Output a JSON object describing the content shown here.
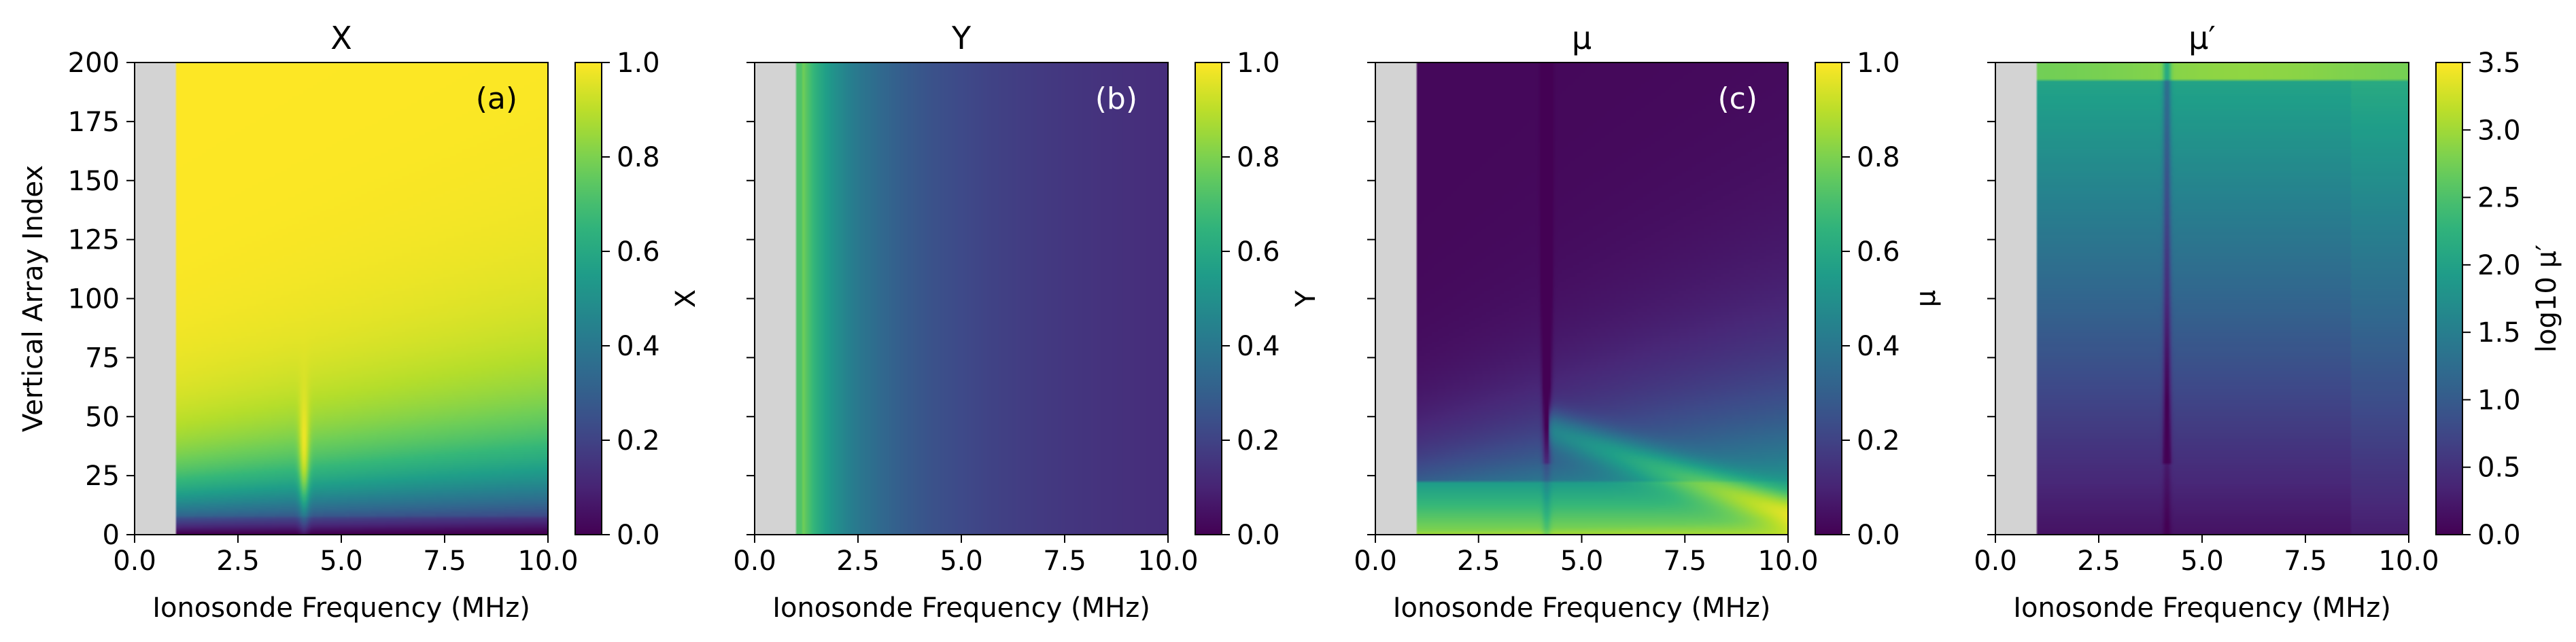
{
  "figure": {
    "xlabel": "Ionosonde Frequency (MHz)",
    "ylabel": "Vertical Array Index"
  },
  "chart_data": [
    {
      "type": "heatmap",
      "title": "X",
      "panel_label": "(a)",
      "label_color": "#000000",
      "xlabel": "Ionosonde Frequency (MHz)",
      "ylabel": "Vertical Array Index",
      "xlim": [
        0,
        10
      ],
      "ylim": [
        0,
        200
      ],
      "xticks": [
        "0.0",
        "2.5",
        "5.0",
        "7.5",
        "10.0"
      ],
      "yticks": [
        "0",
        "25",
        "50",
        "75",
        "100",
        "125",
        "150",
        "175",
        "200"
      ],
      "masked_region_x": [
        0,
        1.0
      ],
      "colormap": "viridis",
      "colorbar": {
        "label": "X",
        "range": [
          0,
          1
        ],
        "ticks": [
          "0.0",
          "0.2",
          "0.4",
          "0.6",
          "0.8",
          "1.0"
        ]
      }
    },
    {
      "type": "heatmap",
      "title": "Y",
      "panel_label": "(b)",
      "label_color": "#ffffff",
      "xlabel": "Ionosonde Frequency (MHz)",
      "xlim": [
        0,
        10
      ],
      "ylim": [
        0,
        200
      ],
      "xticks": [
        "0.0",
        "2.5",
        "5.0",
        "7.5",
        "10.0"
      ],
      "masked_region_x": [
        0,
        1.0
      ],
      "colormap": "viridis",
      "colorbar": {
        "label": "Y",
        "range": [
          0,
          1
        ],
        "ticks": [
          "0.0",
          "0.2",
          "0.4",
          "0.6",
          "0.8",
          "1.0"
        ]
      }
    },
    {
      "type": "heatmap",
      "title": "μ",
      "panel_label": "(c)",
      "label_color": "#ffffff",
      "xlabel": "Ionosonde Frequency (MHz)",
      "xlim": [
        0,
        10
      ],
      "ylim": [
        0,
        200
      ],
      "xticks": [
        "0.0",
        "2.5",
        "5.0",
        "7.5",
        "10.0"
      ],
      "masked_region_x": [
        0,
        1.0
      ],
      "colormap": "viridis",
      "colorbar": {
        "label": "μ",
        "range": [
          0,
          1
        ],
        "ticks": [
          "0.0",
          "0.2",
          "0.4",
          "0.6",
          "0.8",
          "1.0"
        ]
      }
    },
    {
      "type": "heatmap",
      "title": "μ′",
      "panel_label": "",
      "label_color": "#000000",
      "xlabel": "Ionosonde Frequency (MHz)",
      "xlim": [
        0,
        10
      ],
      "ylim": [
        0,
        200
      ],
      "xticks": [
        "0.0",
        "2.5",
        "5.0",
        "7.5",
        "10.0"
      ],
      "masked_region_x": [
        0,
        1.0
      ],
      "colormap": "viridis",
      "colorbar": {
        "label": "log10 μ′",
        "range": [
          0,
          3.5
        ],
        "ticks": [
          "0.0",
          "0.5",
          "1.0",
          "1.5",
          "2.0",
          "2.5",
          "3.0",
          "3.5"
        ]
      }
    }
  ]
}
